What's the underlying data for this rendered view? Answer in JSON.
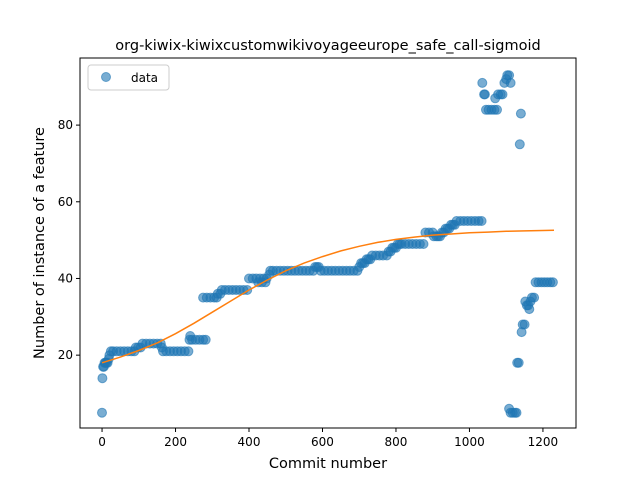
{
  "chart_data": {
    "type": "scatter",
    "title": "org-kiwix-kiwixcustomwikivoyageeurope_safe_call-sigmoid",
    "xlabel": "Commit number",
    "ylabel": "Number of instance of a feature",
    "xlim": [
      -60,
      1290
    ],
    "ylim": [
      1,
      97.5
    ],
    "xticks": [
      0,
      200,
      400,
      600,
      800,
      1000,
      1200
    ],
    "yticks": [
      20,
      40,
      60,
      80
    ],
    "grid": false,
    "legend": {
      "placement": "top-left",
      "entries": [
        "data"
      ]
    },
    "colors": {
      "data": "#1f77b4",
      "fit": "#ff7f0e"
    },
    "series": [
      {
        "name": "data",
        "kind": "scatter",
        "points": [
          [
            0,
            5
          ],
          [
            1,
            14
          ],
          [
            3,
            17
          ],
          [
            5,
            17
          ],
          [
            7,
            18
          ],
          [
            9,
            18
          ],
          [
            12,
            18
          ],
          [
            15,
            18
          ],
          [
            18,
            19
          ],
          [
            20,
            20
          ],
          [
            24,
            21
          ],
          [
            30,
            21
          ],
          [
            40,
            21
          ],
          [
            50,
            21
          ],
          [
            60,
            21
          ],
          [
            70,
            21
          ],
          [
            80,
            21
          ],
          [
            88,
            21
          ],
          [
            92,
            22
          ],
          [
            98,
            22
          ],
          [
            105,
            22
          ],
          [
            110,
            23
          ],
          [
            120,
            23
          ],
          [
            130,
            23
          ],
          [
            140,
            23
          ],
          [
            150,
            23
          ],
          [
            160,
            23
          ],
          [
            163,
            22
          ],
          [
            166,
            21
          ],
          [
            175,
            21
          ],
          [
            185,
            21
          ],
          [
            195,
            21
          ],
          [
            205,
            21
          ],
          [
            215,
            21
          ],
          [
            225,
            21
          ],
          [
            235,
            21
          ],
          [
            238,
            24
          ],
          [
            240,
            25
          ],
          [
            245,
            24
          ],
          [
            255,
            24
          ],
          [
            265,
            24
          ],
          [
            275,
            24
          ],
          [
            282,
            24
          ],
          [
            275,
            35
          ],
          [
            285,
            35
          ],
          [
            295,
            35
          ],
          [
            305,
            35
          ],
          [
            312,
            35
          ],
          [
            315,
            36
          ],
          [
            322,
            36
          ],
          [
            326,
            37
          ],
          [
            335,
            37
          ],
          [
            345,
            37
          ],
          [
            355,
            37
          ],
          [
            365,
            37
          ],
          [
            375,
            37
          ],
          [
            385,
            37
          ],
          [
            395,
            37
          ],
          [
            400,
            40
          ],
          [
            410,
            40
          ],
          [
            420,
            40
          ],
          [
            430,
            40
          ],
          [
            440,
            40
          ],
          [
            448,
            40
          ],
          [
            425,
            39
          ],
          [
            435,
            39
          ],
          [
            445,
            39
          ],
          [
            455,
            41
          ],
          [
            458,
            42
          ],
          [
            465,
            42
          ],
          [
            475,
            42
          ],
          [
            485,
            42
          ],
          [
            495,
            42
          ],
          [
            505,
            42
          ],
          [
            515,
            42
          ],
          [
            525,
            42
          ],
          [
            535,
            42
          ],
          [
            545,
            42
          ],
          [
            555,
            42
          ],
          [
            565,
            42
          ],
          [
            575,
            42
          ],
          [
            580,
            43
          ],
          [
            585,
            43
          ],
          [
            590,
            43
          ],
          [
            595,
            42
          ],
          [
            605,
            42
          ],
          [
            615,
            42
          ],
          [
            625,
            42
          ],
          [
            635,
            42
          ],
          [
            645,
            42
          ],
          [
            655,
            42
          ],
          [
            665,
            42
          ],
          [
            675,
            42
          ],
          [
            685,
            42
          ],
          [
            695,
            42
          ],
          [
            700,
            43
          ],
          [
            705,
            44
          ],
          [
            710,
            44
          ],
          [
            715,
            44
          ],
          [
            720,
            45
          ],
          [
            725,
            45
          ],
          [
            730,
            45
          ],
          [
            735,
            46
          ],
          [
            745,
            46
          ],
          [
            755,
            46
          ],
          [
            765,
            46
          ],
          [
            775,
            46
          ],
          [
            780,
            47
          ],
          [
            785,
            47
          ],
          [
            790,
            48
          ],
          [
            795,
            48
          ],
          [
            800,
            48
          ],
          [
            805,
            49
          ],
          [
            810,
            49
          ],
          [
            815,
            49
          ],
          [
            825,
            49
          ],
          [
            835,
            49
          ],
          [
            845,
            49
          ],
          [
            855,
            49
          ],
          [
            865,
            49
          ],
          [
            875,
            49
          ],
          [
            880,
            52
          ],
          [
            890,
            52
          ],
          [
            900,
            52
          ],
          [
            903,
            51
          ],
          [
            910,
            51
          ],
          [
            915,
            51
          ],
          [
            920,
            51
          ],
          [
            925,
            52
          ],
          [
            930,
            52
          ],
          [
            935,
            53
          ],
          [
            940,
            53
          ],
          [
            945,
            53
          ],
          [
            950,
            54
          ],
          [
            955,
            54
          ],
          [
            960,
            54
          ],
          [
            965,
            55
          ],
          [
            975,
            55
          ],
          [
            985,
            55
          ],
          [
            995,
            55
          ],
          [
            1005,
            55
          ],
          [
            1015,
            55
          ],
          [
            1025,
            55
          ],
          [
            1033,
            55
          ],
          [
            1035,
            91
          ],
          [
            1040,
            88
          ],
          [
            1042,
            88
          ],
          [
            1045,
            84
          ],
          [
            1052,
            84
          ],
          [
            1060,
            84
          ],
          [
            1068,
            84
          ],
          [
            1075,
            84
          ],
          [
            1070,
            87
          ],
          [
            1078,
            88
          ],
          [
            1085,
            88
          ],
          [
            1090,
            88
          ],
          [
            1095,
            91
          ],
          [
            1100,
            92
          ],
          [
            1103,
            93
          ],
          [
            1108,
            93
          ],
          [
            1112,
            91
          ],
          [
            1108,
            6
          ],
          [
            1112,
            5
          ],
          [
            1118,
            5
          ],
          [
            1124,
            5
          ],
          [
            1128,
            5
          ],
          [
            1130,
            18
          ],
          [
            1134,
            18
          ],
          [
            1137,
            75
          ],
          [
            1140,
            83
          ],
          [
            1142,
            26
          ],
          [
            1145,
            28
          ],
          [
            1150,
            28
          ],
          [
            1152,
            34
          ],
          [
            1156,
            33
          ],
          [
            1160,
            33
          ],
          [
            1163,
            32
          ],
          [
            1166,
            34
          ],
          [
            1170,
            35
          ],
          [
            1176,
            35
          ],
          [
            1180,
            39
          ],
          [
            1188,
            39
          ],
          [
            1196,
            39
          ],
          [
            1204,
            39
          ],
          [
            1212,
            39
          ],
          [
            1220,
            39
          ],
          [
            1227,
            39
          ]
        ]
      },
      {
        "name": "",
        "kind": "line",
        "x": [
          0,
          50,
          100,
          150,
          200,
          250,
          300,
          350,
          400,
          450,
          500,
          550,
          600,
          650,
          700,
          750,
          800,
          850,
          900,
          950,
          1000,
          1050,
          1100,
          1150,
          1200,
          1230
        ],
        "y": [
          18,
          19.5,
          21.2,
          23.2,
          25.6,
          28.3,
          31.2,
          34.1,
          37,
          39.6,
          42,
          44,
          45.7,
          47.2,
          48.4,
          49.4,
          50.2,
          50.8,
          51.3,
          51.6,
          51.9,
          52.1,
          52.3,
          52.4,
          52.5,
          52.6
        ]
      }
    ]
  }
}
